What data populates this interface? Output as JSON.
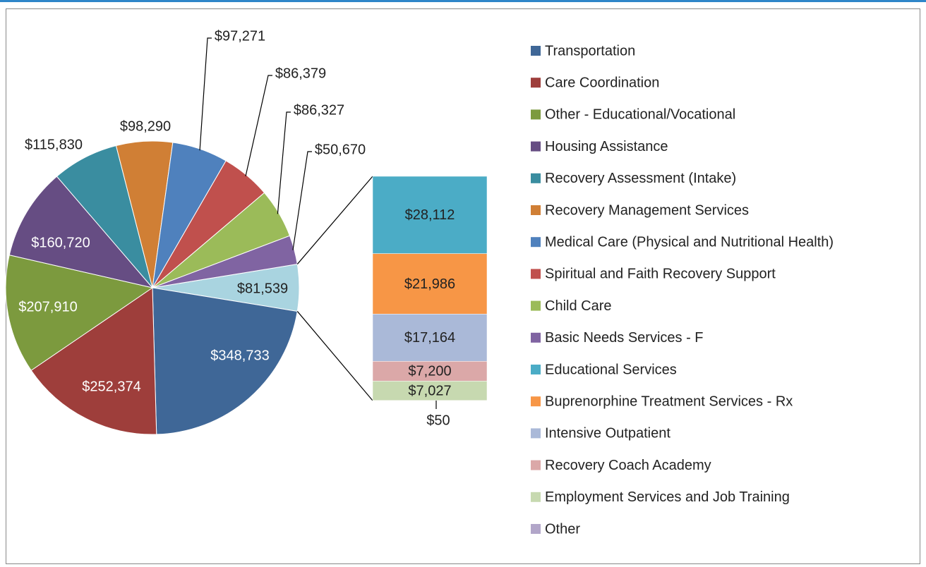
{
  "chart_data": {
    "type": "pie-of-bar",
    "pie": {
      "categories": [
        "Transportation",
        "Care Coordination",
        "Other - Educational/Vocational",
        "Housing Assistance",
        "Recovery Assessment (Intake)",
        "Recovery Management Services",
        "Medical Care (Physical and Nutritional Health)",
        "Spiritual and Faith Recovery Support",
        "Child Care",
        "Basic Needs Services - F"
      ],
      "values": [
        348733,
        252374,
        207910,
        160720,
        115830,
        98290,
        97271,
        86379,
        86327,
        50670
      ],
      "value_labels": [
        "$348,733",
        "$252,374",
        "$207,910",
        "$160,720",
        "$115,830",
        "$98,290",
        "$97,271",
        "$86,379",
        "$86,327",
        "$50,670"
      ],
      "colors": [
        "#3f6797",
        "#9e3e3b",
        "#7c9a3e",
        "#664d83",
        "#3a8da0",
        "#d07f35",
        "#4f81bd",
        "#c0504d",
        "#9bbb59",
        "#8064a2"
      ]
    },
    "bar_total": 81539,
    "bar_total_label": "$81,539",
    "bar_total_color": "#a9d4e0",
    "bar": {
      "categories": [
        "Educational Services",
        "Buprenorphine Treatment Services - Rx",
        "Intensive Outpatient",
        "Recovery Coach Academy",
        "Employment Services and Job Training",
        "Other"
      ],
      "values": [
        28112,
        21986,
        17164,
        7200,
        7027,
        50
      ],
      "value_labels": [
        "$28,112",
        "$21,986",
        "$17,164",
        "$7,200",
        "$7,027",
        "$50"
      ],
      "colors": [
        "#4bacc6",
        "#f79646",
        "#aab9d8",
        "#dba8a8",
        "#c7d9b0",
        "#b2a6c9"
      ]
    },
    "legend": "right"
  }
}
